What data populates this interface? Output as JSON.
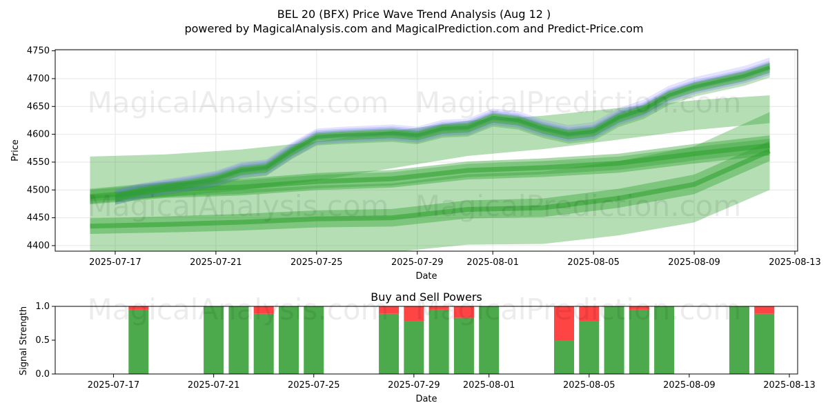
{
  "header": {
    "title": "BEL 20 (BFX) Price Wave Trend Analysis (Aug 12 )",
    "subtitle": "powered by MagicalAnalysis.com and MagicalPrediction.com and Predict-Price.com"
  },
  "watermarks": [
    "MagicalAnalysis.com",
    "MagicalPrediction.com"
  ],
  "colors": {
    "band": "#2ca02c",
    "blue": "#6a6aff",
    "buy": "#4caa4c",
    "sell": "#ff4444",
    "grid": "#e6e6e6"
  },
  "chart_data": [
    {
      "type": "area",
      "title": "",
      "xlabel": "Date",
      "ylabel": "Price",
      "ylim": [
        4390,
        4752
      ],
      "xlim": [
        "2025-07-15",
        "2025-08-13"
      ],
      "yticks": [
        4400,
        4450,
        4500,
        4550,
        4600,
        4650,
        4700,
        4750
      ],
      "xticks": [
        "2025-07-17",
        "2025-07-21",
        "2025-07-25",
        "2025-07-29",
        "2025-08-01",
        "2025-08-05",
        "2025-08-09",
        "2025-08-13"
      ],
      "grid": true,
      "series": [
        {
          "x": [
            "2025-07-17",
            "2025-07-18",
            "2025-07-19",
            "2025-07-20",
            "2025-07-21",
            "2025-07-22",
            "2025-07-23",
            "2025-07-24",
            "2025-07-25",
            "2025-07-26",
            "2025-07-27",
            "2025-07-28",
            "2025-07-29",
            "2025-07-30",
            "2025-07-31",
            "2025-08-01",
            "2025-08-02",
            "2025-08-03",
            "2025-08-04",
            "2025-08-05",
            "2025-08-06",
            "2025-08-07",
            "2025-08-08",
            "2025-08-09",
            "2025-08-10",
            "2025-08-11",
            "2025-08-12"
          ],
          "values": [
            4487,
            4498,
            4505,
            4512,
            4520,
            4535,
            4540,
            4570,
            4595,
            4598,
            4600,
            4602,
            4598,
            4610,
            4612,
            4630,
            4625,
            4610,
            4600,
            4605,
            4630,
            4645,
            4670,
            4685,
            4695,
            4705,
            4720
          ]
        },
        {
          "x": [
            "2025-07-16",
            "2025-07-19",
            "2025-07-22",
            "2025-07-25",
            "2025-07-28",
            "2025-07-31",
            "2025-08-03",
            "2025-08-06",
            "2025-08-09",
            "2025-08-12"
          ],
          "values": [
            4488,
            4500,
            4505,
            4515,
            4520,
            4535,
            4540,
            4548,
            4565,
            4580
          ]
        },
        {
          "x": [
            "2025-07-16",
            "2025-07-19",
            "2025-07-22",
            "2025-07-25",
            "2025-07-28",
            "2025-07-31",
            "2025-08-03",
            "2025-08-06",
            "2025-08-09",
            "2025-08-12"
          ],
          "values": [
            4435,
            4438,
            4442,
            4448,
            4450,
            4465,
            4468,
            4485,
            4510,
            4570
          ]
        },
        {
          "x": [
            "2025-07-16",
            "2025-07-19",
            "2025-07-22",
            "2025-07-25",
            "2025-07-28",
            "2025-07-31",
            "2025-08-03",
            "2025-08-06",
            "2025-08-09",
            "2025-08-12"
          ],
          "values": [
            4530,
            4535,
            4545,
            4560,
            4580,
            4600,
            4610,
            4625,
            4640,
            4650
          ]
        }
      ]
    },
    {
      "type": "bar",
      "title": "Buy and Sell Powers",
      "xlabel": "Date",
      "ylabel": "Signal Strength",
      "ylim": [
        0,
        1.0
      ],
      "xlim": [
        "2025-07-15",
        "2025-08-13"
      ],
      "yticks": [
        "0.0",
        "0.5",
        "1.0"
      ],
      "xticks": [
        "2025-07-17",
        "2025-07-21",
        "2025-07-25",
        "2025-07-29",
        "2025-08-01",
        "2025-08-05",
        "2025-08-09",
        "2025-08-13"
      ],
      "categories": [
        "2025-07-18",
        "2025-07-21",
        "2025-07-22",
        "2025-07-23",
        "2025-07-24",
        "2025-07-25",
        "2025-07-28",
        "2025-07-29",
        "2025-07-30",
        "2025-07-31",
        "2025-08-01",
        "2025-08-04",
        "2025-08-05",
        "2025-08-06",
        "2025-08-07",
        "2025-08-08",
        "2025-08-11",
        "2025-08-12"
      ],
      "series": [
        {
          "name": "Buy",
          "values": [
            0.95,
            1.0,
            1.0,
            0.89,
            1.0,
            1.0,
            0.89,
            0.78,
            0.95,
            0.83,
            1.0,
            0.5,
            0.78,
            1.0,
            0.95,
            1.0,
            1.0,
            0.89
          ]
        },
        {
          "name": "Sell",
          "values": [
            0.05,
            0.0,
            0.0,
            0.11,
            0.0,
            0.0,
            0.11,
            0.22,
            0.05,
            0.17,
            0.0,
            0.5,
            0.22,
            0.0,
            0.05,
            0.0,
            0.0,
            0.11
          ]
        }
      ]
    }
  ]
}
